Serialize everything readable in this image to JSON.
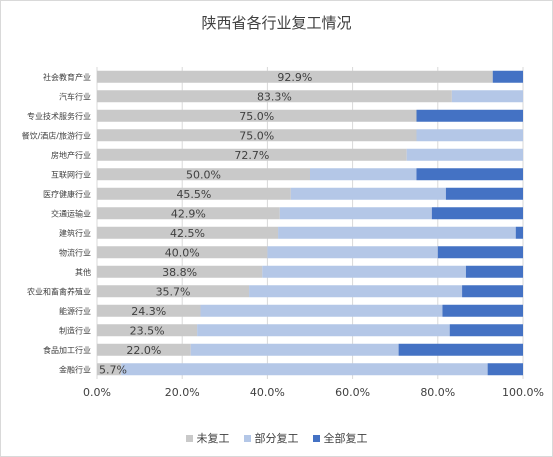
{
  "chart_data": {
    "type": "bar",
    "orientation": "horizontal",
    "stacked": true,
    "title": "陕西省各行业复工情况",
    "categories": [
      "社会教育产业",
      "汽车行业",
      "专业技术服务行业",
      "餐饮/酒店/旅游行业",
      "房地产行业",
      "互联网行业",
      "医疗健康行业",
      "交通运输业",
      "建筑行业",
      "物流行业",
      "其他",
      "农业和畜禽养殖业",
      "能源行业",
      "制造行业",
      "食品加工行业",
      "金融行业"
    ],
    "series": [
      {
        "name": "未复工",
        "color": "#c9c9c9",
        "values": [
          92.9,
          83.3,
          75.0,
          75.0,
          72.7,
          50.0,
          45.5,
          42.9,
          42.5,
          40.0,
          38.8,
          35.7,
          24.3,
          23.5,
          22.0,
          5.7
        ]
      },
      {
        "name": "部分复工",
        "color": "#b4c7e7",
        "values": [
          0.0,
          16.7,
          0.0,
          25.0,
          27.3,
          25.0,
          36.4,
          35.7,
          55.8,
          40.0,
          47.8,
          50.0,
          56.8,
          59.3,
          48.8,
          86.0
        ]
      },
      {
        "name": "全部复工",
        "color": "#4472c4",
        "values": [
          7.1,
          0.0,
          25.0,
          0.0,
          0.0,
          25.0,
          18.1,
          21.4,
          1.7,
          20.0,
          13.4,
          14.3,
          18.9,
          17.2,
          29.2,
          8.3
        ]
      }
    ],
    "data_labels": [
      "92.9%",
      "83.3%",
      "75.0%",
      "75.0%",
      "72.7%",
      "50.0%",
      "45.5%",
      "42.9%",
      "42.5%",
      "40.0%",
      "38.8%",
      "35.7%",
      "24.3%",
      "23.5%",
      "22.0%",
      "5.7%"
    ],
    "xticks": [
      "0.0%",
      "20.0%",
      "40.0%",
      "60.0%",
      "80.0%",
      "100.0%"
    ],
    "xlim": [
      0,
      100
    ],
    "grid": true,
    "legend_position": "bottom"
  }
}
